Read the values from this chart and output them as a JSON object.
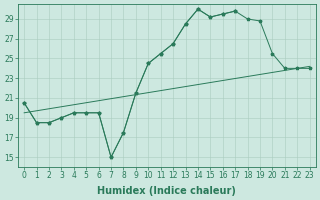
{
  "xlabel": "Humidex (Indice chaleur)",
  "x_values": [
    0,
    1,
    2,
    3,
    4,
    5,
    6,
    7,
    8,
    9,
    10,
    11,
    12,
    13,
    14,
    15,
    16,
    17,
    18,
    19,
    20,
    21,
    22,
    23
  ],
  "line_jagged": [
    20.5,
    18.5,
    18.5,
    19.0,
    19.5,
    19.5,
    19.5,
    15.0,
    17.5,
    21.5,
    24.5,
    25.5,
    26.5,
    28.5,
    30.0,
    29.2,
    29.5,
    29.8,
    29.0,
    28.8,
    25.5,
    24.0,
    24.0,
    24.0
  ],
  "line_upper": [
    20.5,
    18.5,
    18.5,
    19.0,
    19.5,
    19.5,
    19.5,
    15.0,
    17.5,
    21.5,
    24.5,
    25.5,
    26.5,
    28.5,
    30.0,
    29.2,
    29.5,
    29.8,
    null,
    null,
    null,
    null,
    null,
    null
  ],
  "line_trend_x": [
    0,
    23
  ],
  "line_trend_y": [
    19.5,
    24.2
  ],
  "line_color": "#2a7a5a",
  "bg_color": "#cde8e0",
  "grid_color": "#aaccbf",
  "ylim": [
    14.0,
    30.5
  ],
  "yticks": [
    15,
    17,
    19,
    21,
    23,
    25,
    27,
    29
  ],
  "xlim": [
    -0.5,
    23.5
  ],
  "tick_fontsize": 5.5,
  "xlabel_fontsize": 7
}
